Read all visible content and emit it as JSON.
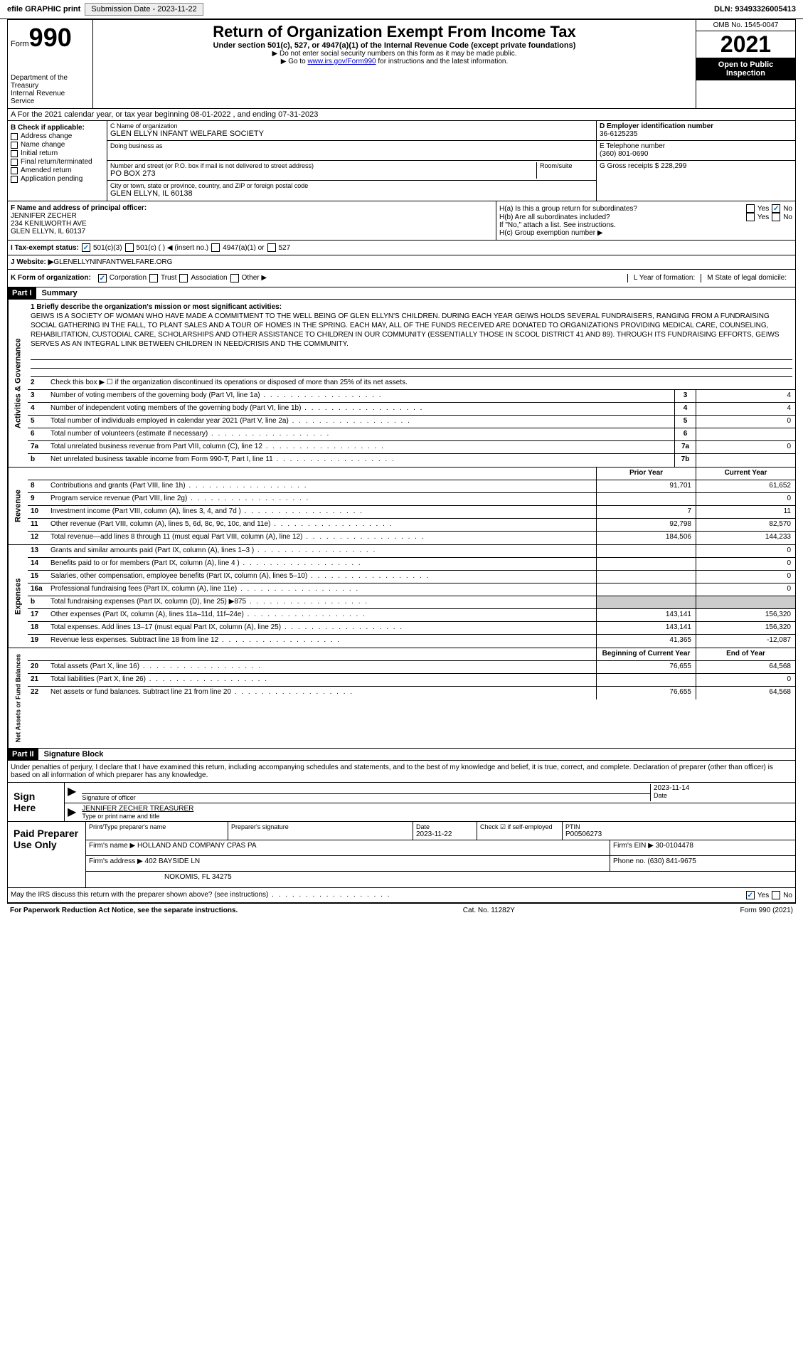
{
  "topbar": {
    "efile": "efile GRAPHIC print",
    "submission_label": "Submission Date - ",
    "submission_date": "2023-11-22",
    "dln_label": "DLN: ",
    "dln": "93493326005413"
  },
  "header": {
    "form_label": "Form",
    "form_num": "990",
    "dept": "Department of the Treasury\nInternal Revenue Service",
    "title": "Return of Organization Exempt From Income Tax",
    "sub": "Under section 501(c), 527, or 4947(a)(1) of the Internal Revenue Code (except private foundations)",
    "note1": "▶ Do not enter social security numbers on this form as it may be made public.",
    "note2_pre": "▶ Go to ",
    "note2_link": "www.irs.gov/Form990",
    "note2_post": " for instructions and the latest information.",
    "omb": "OMB No. 1545-0047",
    "year": "2021",
    "open": "Open to Public Inspection"
  },
  "section_a": "A For the 2021 calendar year, or tax year beginning 08-01-2022  , and ending 07-31-2023",
  "col_b": {
    "title": "B Check if applicable:",
    "items": [
      "Address change",
      "Name change",
      "Initial return",
      "Final return/terminated",
      "Amended return",
      "Application pending"
    ]
  },
  "col_c": {
    "name_label": "C Name of organization",
    "name": "GLEN ELLYN INFANT WELFARE SOCIETY",
    "dba_label": "Doing business as",
    "dba": "",
    "addr_label": "Number and street (or P.O. box if mail is not delivered to street address)",
    "room_label": "Room/suite",
    "addr": "PO BOX 273",
    "city_label": "City or town, state or province, country, and ZIP or foreign postal code",
    "city": "GLEN ELLYN, IL  60138"
  },
  "col_d": {
    "ein_label": "D Employer identification number",
    "ein": "36-6125235",
    "tel_label": "E Telephone number",
    "tel": "(360) 801-0690",
    "gross_label": "G Gross receipts $ ",
    "gross": "228,299"
  },
  "row_f": {
    "label": "F  Name and address of principal officer:",
    "name": "JENNIFER ZECHER",
    "addr1": "234 KENILWORTH AVE",
    "addr2": "GLEN ELLYN, IL  60137"
  },
  "row_h": {
    "ha": "H(a)  Is this a group return for subordinates?",
    "hb": "H(b)  Are all subordinates included?",
    "hb_note": "If \"No,\" attach a list. See instructions.",
    "hc": "H(c)  Group exemption number ▶"
  },
  "row_i": {
    "label": "I   Tax-exempt status:",
    "opts": [
      "501(c)(3)",
      "501(c) (  ) ◀ (insert no.)",
      "4947(a)(1) or",
      "527"
    ]
  },
  "row_j": {
    "label": "J   Website: ▶  ",
    "val": "GLENELLYNINFANTWELFARE.ORG"
  },
  "row_k": {
    "label": "K Form of organization:",
    "opts": [
      "Corporation",
      "Trust",
      "Association",
      "Other ▶"
    ],
    "l": "L Year of formation:",
    "m": "M State of legal domicile:"
  },
  "part1": {
    "hdr": "Part I",
    "title": "Summary",
    "mission_label": "1   Briefly describe the organization's mission or most significant activities:",
    "mission": "GEIWS IS A SOCIETY OF WOMAN WHO HAVE MADE A COMMITMENT TO THE WELL BEING OF GLEN ELLYN'S CHILDREN. DURING EACH YEAR GEIWS HOLDS SEVERAL FUNDRAISERS, RANGING FROM A FUNDRAISING SOCIAL GATHERING IN THE FALL, TO PLANT SALES AND A TOUR OF HOMES IN THE SPRING. EACH MAY, ALL OF THE FUNDS RECEIVED ARE DONATED TO ORGANIZATIONS PROVIDING MEDICAL CARE, COUNSELING, REHABILITATION, CUSTODIAL CARE, SCHOLARSHIPS AND OTHER ASSISTANCE TO CHILDREN IN OUR COMMUNITY (ESSENTIALLY THOSE IN SCOOL DISTRICT 41 AND 89). THROUGH ITS FUNDRAISING EFFORTS, GEIWS SERVES AS AN INTEGRAL LINK BETWEEN CHILDREN IN NEED/CRISIS AND THE COMMUNITY."
  },
  "sections": {
    "governance": "Activities & Governance",
    "revenue": "Revenue",
    "expenses": "Expenses",
    "netassets": "Net Assets or Fund Balances"
  },
  "gov_lines": [
    {
      "n": "2",
      "d": "Check this box ▶ ☐  if the organization discontinued its operations or disposed of more than 25% of its net assets."
    },
    {
      "n": "3",
      "d": "Number of voting members of the governing body (Part VI, line 1a)",
      "box": "3",
      "v": "4"
    },
    {
      "n": "4",
      "d": "Number of independent voting members of the governing body (Part VI, line 1b)",
      "box": "4",
      "v": "4"
    },
    {
      "n": "5",
      "d": "Total number of individuals employed in calendar year 2021 (Part V, line 2a)",
      "box": "5",
      "v": "0"
    },
    {
      "n": "6",
      "d": "Total number of volunteers (estimate if necessary)",
      "box": "6",
      "v": ""
    },
    {
      "n": "7a",
      "d": "Total unrelated business revenue from Part VIII, column (C), line 12",
      "box": "7a",
      "v": "0"
    },
    {
      "n": "b",
      "d": "Net unrelated business taxable income from Form 990-T, Part I, line 11",
      "box": "7b",
      "v": ""
    }
  ],
  "col_hdrs": {
    "prior": "Prior Year",
    "current": "Current Year"
  },
  "rev_lines": [
    {
      "n": "8",
      "d": "Contributions and grants (Part VIII, line 1h)",
      "p": "91,701",
      "c": "61,652"
    },
    {
      "n": "9",
      "d": "Program service revenue (Part VIII, line 2g)",
      "p": "",
      "c": "0"
    },
    {
      "n": "10",
      "d": "Investment income (Part VIII, column (A), lines 3, 4, and 7d )",
      "p": "7",
      "c": "11"
    },
    {
      "n": "11",
      "d": "Other revenue (Part VIII, column (A), lines 5, 6d, 8c, 9c, 10c, and 11e)",
      "p": "92,798",
      "c": "82,570"
    },
    {
      "n": "12",
      "d": "Total revenue—add lines 8 through 11 (must equal Part VIII, column (A), line 12)",
      "p": "184,506",
      "c": "144,233"
    }
  ],
  "exp_lines": [
    {
      "n": "13",
      "d": "Grants and similar amounts paid (Part IX, column (A), lines 1–3 )",
      "p": "",
      "c": "0"
    },
    {
      "n": "14",
      "d": "Benefits paid to or for members (Part IX, column (A), line 4 )",
      "p": "",
      "c": "0"
    },
    {
      "n": "15",
      "d": "Salaries, other compensation, employee benefits (Part IX, column (A), lines 5–10)",
      "p": "",
      "c": "0"
    },
    {
      "n": "16a",
      "d": "Professional fundraising fees (Part IX, column (A), line 11e)",
      "p": "",
      "c": "0"
    },
    {
      "n": "b",
      "d": "Total fundraising expenses (Part IX, column (D), line 25) ▶875",
      "p": "shaded",
      "c": "shaded"
    },
    {
      "n": "17",
      "d": "Other expenses (Part IX, column (A), lines 11a–11d, 11f–24e)",
      "p": "143,141",
      "c": "156,320"
    },
    {
      "n": "18",
      "d": "Total expenses. Add lines 13–17 (must equal Part IX, column (A), line 25)",
      "p": "143,141",
      "c": "156,320"
    },
    {
      "n": "19",
      "d": "Revenue less expenses. Subtract line 18 from line 12",
      "p": "41,365",
      "c": "-12,087"
    }
  ],
  "net_hdrs": {
    "begin": "Beginning of Current Year",
    "end": "End of Year"
  },
  "net_lines": [
    {
      "n": "20",
      "d": "Total assets (Part X, line 16)",
      "p": "76,655",
      "c": "64,568"
    },
    {
      "n": "21",
      "d": "Total liabilities (Part X, line 26)",
      "p": "",
      "c": "0"
    },
    {
      "n": "22",
      "d": "Net assets or fund balances. Subtract line 21 from line 20",
      "p": "76,655",
      "c": "64,568"
    }
  ],
  "part2": {
    "hdr": "Part II",
    "title": "Signature Block",
    "penalty": "Under penalties of perjury, I declare that I have examined this return, including accompanying schedules and statements, and to the best of my knowledge and belief, it is true, correct, and complete. Declaration of preparer (other than officer) is based on all information of which preparer has any knowledge."
  },
  "sign": {
    "label": "Sign Here",
    "sig_label": "Signature of officer",
    "date_label": "Date",
    "date": "2023-11-14",
    "name": "JENNIFER ZECHER  TREASURER",
    "name_label": "Type or print name and title"
  },
  "prep": {
    "label": "Paid Preparer Use Only",
    "r1": {
      "c1": "Print/Type preparer's name",
      "c2": "Preparer's signature",
      "c3": "Date",
      "c3v": "2023-11-22",
      "c4": "Check ☑ if self-employed",
      "c5": "PTIN",
      "c5v": "P00506273"
    },
    "r2": {
      "label": "Firm's name    ▶ ",
      "val": "HOLLAND AND COMPANY CPAS PA",
      "ein_label": "Firm's EIN ▶ ",
      "ein": "30-0104478"
    },
    "r3": {
      "label": "Firm's address ▶ ",
      "val": "402 BAYSIDE LN",
      "phone_label": "Phone no. ",
      "phone": "(630) 841-9675"
    },
    "r4": {
      "val": "NOKOMIS, FL  34275"
    }
  },
  "discuss": "May the IRS discuss this return with the preparer shown above? (see instructions)",
  "footer": {
    "left": "For Paperwork Reduction Act Notice, see the separate instructions.",
    "mid": "Cat. No. 11282Y",
    "right": "Form 990 (2021)"
  },
  "colors": {
    "link": "#0000cc",
    "check": "#0066cc"
  }
}
